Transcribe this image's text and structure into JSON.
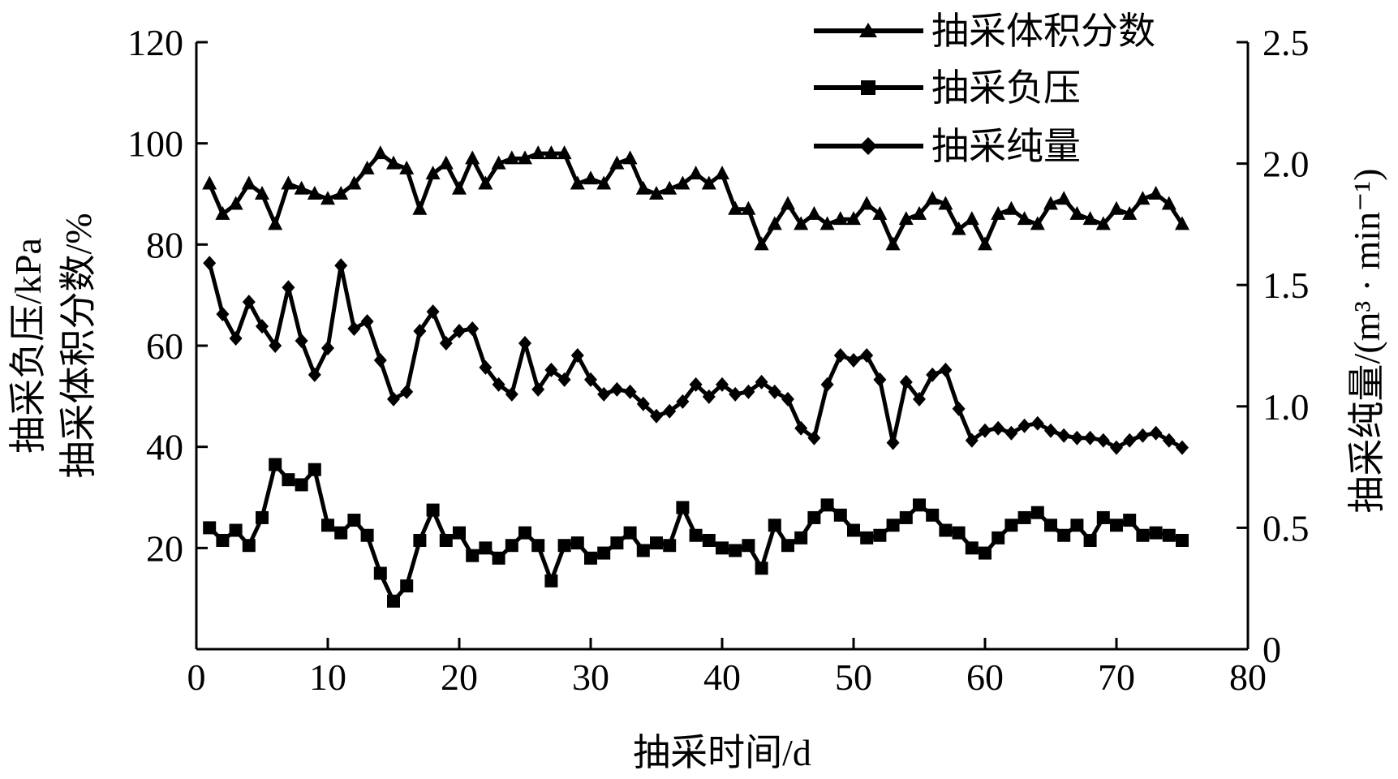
{
  "chart_data": {
    "type": "line",
    "xlabel": "抽采时间/d",
    "ylabel_left_line1": "抽采负压/kPa",
    "ylabel_left_line2": "抽采体积分数/%",
    "ylabel_right": "抽采纯量/(m³ · min⁻¹)",
    "xlim": [
      0,
      80
    ],
    "ylim_left": [
      0,
      120
    ],
    "ylim_right": [
      0,
      2.5
    ],
    "x_ticks": [
      "0",
      "10",
      "20",
      "30",
      "40",
      "50",
      "60",
      "70",
      "80"
    ],
    "y_left_ticks": [
      "20",
      "40",
      "60",
      "80",
      "100",
      "120"
    ],
    "y_right_ticks": [
      "0",
      "0.5",
      "1.0",
      "1.5",
      "2.0",
      "2.5"
    ],
    "grid": false,
    "legend_position": "top-right",
    "x": [
      1,
      2,
      3,
      4,
      5,
      6,
      7,
      8,
      9,
      10,
      11,
      12,
      13,
      14,
      15,
      16,
      17,
      18,
      19,
      20,
      21,
      22,
      23,
      24,
      25,
      26,
      27,
      28,
      29,
      30,
      31,
      32,
      33,
      34,
      35,
      36,
      37,
      38,
      39,
      40,
      41,
      42,
      43,
      44,
      45,
      46,
      47,
      48,
      49,
      50,
      51,
      52,
      53,
      54,
      55,
      56,
      57,
      58,
      59,
      60,
      61,
      62,
      63,
      64,
      65,
      66,
      67,
      68,
      69,
      70,
      71,
      72,
      73,
      74,
      75
    ],
    "series": [
      {
        "name": "抽采体积分数",
        "axis": "left",
        "marker": "triangle",
        "values": [
          92,
          86,
          88,
          92,
          90,
          84,
          92,
          91,
          90,
          89,
          90,
          92,
          95,
          98,
          96,
          95,
          87,
          94,
          96,
          91,
          97,
          92,
          96,
          97,
          97,
          98,
          98,
          98,
          92,
          93,
          92,
          96,
          97,
          91,
          90,
          91,
          92,
          94,
          92,
          94,
          87,
          87,
          80,
          84,
          88,
          84,
          86,
          84,
          85,
          85,
          88,
          86,
          80,
          85,
          86,
          89,
          88,
          83,
          85,
          80,
          86,
          87,
          85,
          84,
          88,
          89,
          86,
          85,
          84,
          87,
          86,
          89,
          90,
          88,
          84
        ]
      },
      {
        "name": "抽采负压",
        "axis": "left",
        "marker": "square",
        "values": [
          24,
          21.5,
          23.5,
          20.5,
          26,
          36.5,
          33.5,
          32.5,
          35.5,
          24.5,
          23,
          25.5,
          22.5,
          15,
          9.5,
          12.5,
          21.5,
          27.5,
          21.5,
          23,
          18.5,
          20,
          18,
          20.5,
          23,
          20.5,
          13.5,
          20.5,
          21,
          18,
          19,
          21,
          23,
          19.5,
          21,
          20.5,
          28,
          22.5,
          21.5,
          20,
          19.5,
          20.5,
          16,
          24.5,
          20.5,
          22,
          26,
          28.5,
          26.5,
          23.5,
          22,
          22.5,
          24.5,
          26,
          28.5,
          26.5,
          23.5,
          23,
          20,
          19,
          22,
          24.5,
          26,
          27,
          24.5,
          22.5,
          24.5,
          21.5,
          26,
          24.5,
          25.5,
          22.5,
          23,
          22.5,
          21.5
        ]
      },
      {
        "name": "抽采纯量",
        "axis": "right",
        "marker": "diamond",
        "values": [
          1.59,
          1.38,
          1.28,
          1.43,
          1.33,
          1.25,
          1.49,
          1.27,
          1.13,
          1.24,
          1.58,
          1.32,
          1.35,
          1.19,
          1.03,
          1.06,
          1.31,
          1.39,
          1.26,
          1.31,
          1.32,
          1.16,
          1.09,
          1.05,
          1.26,
          1.07,
          1.15,
          1.11,
          1.21,
          1.11,
          1.05,
          1.07,
          1.06,
          1.01,
          0.96,
          0.98,
          1.02,
          1.09,
          1.04,
          1.09,
          1.05,
          1.06,
          1.1,
          1.06,
          1.03,
          0.91,
          0.87,
          1.09,
          1.21,
          1.19,
          1.21,
          1.11,
          0.85,
          1.1,
          1.03,
          1.13,
          1.15,
          0.99,
          0.86,
          0.9,
          0.91,
          0.89,
          0.92,
          0.93,
          0.9,
          0.88,
          0.87,
          0.87,
          0.86,
          0.83,
          0.86,
          0.88,
          0.89,
          0.86,
          0.83
        ]
      }
    ]
  }
}
